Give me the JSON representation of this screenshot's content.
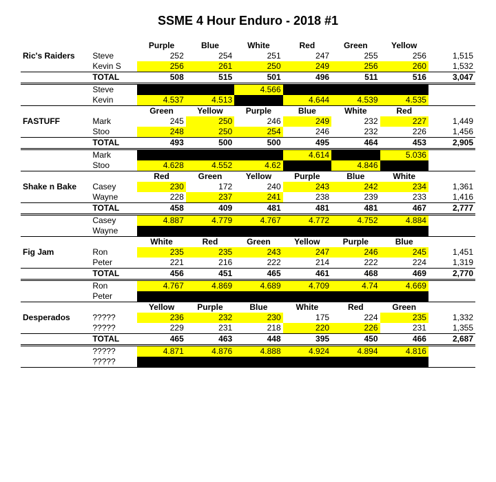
{
  "title": "SSME 4 Hour Enduro - 2018 #1",
  "teams": [
    {
      "name": "Ric's Raiders",
      "colHeaders": [
        "Purple",
        "Blue",
        "White",
        "Red",
        "Green",
        "Yellow"
      ],
      "riders": [
        {
          "name": "Steve",
          "vals": [
            "252",
            "254",
            "251",
            "247",
            "255",
            "256"
          ],
          "hl": [
            0,
            0,
            0,
            0,
            0,
            0
          ],
          "total": "1,515"
        },
        {
          "name": "Kevin S",
          "vals": [
            "256",
            "261",
            "250",
            "249",
            "256",
            "260"
          ],
          "hl": [
            1,
            1,
            1,
            1,
            1,
            1
          ],
          "total": "1,532"
        }
      ],
      "totals": {
        "vals": [
          "508",
          "515",
          "501",
          "496",
          "511",
          "516"
        ],
        "total": "3,047"
      },
      "times": [
        {
          "name": "Steve",
          "vals": [
            "",
            "",
            "4.566",
            "",
            "",
            ""
          ],
          "cls": [
            "blk",
            "blk",
            "hl",
            "blk",
            "blk",
            "blk"
          ]
        },
        {
          "name": "Kevin",
          "vals": [
            "4.537",
            "4.513",
            "",
            "4.644",
            "4.539",
            "4.535"
          ],
          "cls": [
            "hl",
            "hl",
            "blk",
            "hl",
            "hl",
            "hl"
          ]
        }
      ]
    },
    {
      "name": "FASTUFF",
      "colHeaders": [
        "Green",
        "Yellow",
        "Purple",
        "Blue",
        "White",
        "Red"
      ],
      "riders": [
        {
          "name": "Mark",
          "vals": [
            "245",
            "250",
            "246",
            "249",
            "232",
            "227"
          ],
          "hl": [
            0,
            1,
            0,
            1,
            0,
            1
          ],
          "total": "1,449"
        },
        {
          "name": "Stoo",
          "vals": [
            "248",
            "250",
            "254",
            "246",
            "232",
            "226"
          ],
          "hl": [
            1,
            1,
            1,
            0,
            0,
            0
          ],
          "total": "1,456"
        }
      ],
      "totals": {
        "vals": [
          "493",
          "500",
          "500",
          "495",
          "464",
          "453"
        ],
        "total": "2,905"
      },
      "times": [
        {
          "name": "Mark",
          "vals": [
            "",
            "",
            "",
            "4.614",
            "",
            "5.036"
          ],
          "cls": [
            "blk",
            "blk",
            "blk",
            "hl",
            "blk",
            "hl"
          ]
        },
        {
          "name": "Stoo",
          "vals": [
            "4.628",
            "4.552",
            "4.62",
            "",
            "4.846",
            ""
          ],
          "cls": [
            "hl",
            "hl",
            "hl",
            "blk",
            "hl",
            "blk"
          ]
        }
      ]
    },
    {
      "name": "Shake n Bake",
      "colHeaders": [
        "Red",
        "Green",
        "Yellow",
        "Purple",
        "Blue",
        "White"
      ],
      "riders": [
        {
          "name": "Casey",
          "vals": [
            "230",
            "172",
            "240",
            "243",
            "242",
            "234"
          ],
          "hl": [
            1,
            0,
            0,
            1,
            1,
            1
          ],
          "total": "1,361"
        },
        {
          "name": "Wayne",
          "vals": [
            "228",
            "237",
            "241",
            "238",
            "239",
            "233"
          ],
          "hl": [
            0,
            1,
            1,
            0,
            0,
            0
          ],
          "total": "1,416"
        }
      ],
      "totals": {
        "vals": [
          "458",
          "409",
          "481",
          "481",
          "481",
          "467"
        ],
        "total": "2,777"
      },
      "times": [
        {
          "name": "Casey",
          "vals": [
            "4.887",
            "4.779",
            "4.767",
            "4.772",
            "4.752",
            "4.884"
          ],
          "cls": [
            "hl",
            "hl",
            "hl",
            "hl",
            "hl",
            "hl"
          ]
        },
        {
          "name": "Wayne",
          "vals": [
            "",
            "",
            "",
            "",
            "",
            ""
          ],
          "cls": [
            "blk",
            "blk",
            "blk",
            "blk",
            "blk",
            "blk"
          ]
        }
      ]
    },
    {
      "name": "Fig Jam",
      "colHeaders": [
        "White",
        "Red",
        "Green",
        "Yellow",
        "Purple",
        "Blue"
      ],
      "riders": [
        {
          "name": "Ron",
          "vals": [
            "235",
            "235",
            "243",
            "247",
            "246",
            "245"
          ],
          "hl": [
            1,
            1,
            1,
            1,
            1,
            1
          ],
          "total": "1,451"
        },
        {
          "name": "Peter",
          "vals": [
            "221",
            "216",
            "222",
            "214",
            "222",
            "224"
          ],
          "hl": [
            0,
            0,
            0,
            0,
            0,
            0
          ],
          "total": "1,319"
        }
      ],
      "totals": {
        "vals": [
          "456",
          "451",
          "465",
          "461",
          "468",
          "469"
        ],
        "total": "2,770"
      },
      "times": [
        {
          "name": "Ron",
          "vals": [
            "4.767",
            "4.869",
            "4.689",
            "4.709",
            "4.74",
            "4.669"
          ],
          "cls": [
            "hl",
            "hl",
            "hl",
            "hl",
            "hl",
            "hl"
          ]
        },
        {
          "name": "Peter",
          "vals": [
            "",
            "",
            "",
            "",
            "",
            ""
          ],
          "cls": [
            "blk",
            "blk",
            "blk",
            "blk",
            "blk",
            "blk"
          ]
        }
      ]
    },
    {
      "name": "Desperados",
      "colHeaders": [
        "Yellow",
        "Purple",
        "Blue",
        "White",
        "Red",
        "Green"
      ],
      "riders": [
        {
          "name": "?????",
          "vals": [
            "236",
            "232",
            "230",
            "175",
            "224",
            "235"
          ],
          "hl": [
            1,
            1,
            1,
            0,
            0,
            1
          ],
          "total": "1,332"
        },
        {
          "name": "?????",
          "vals": [
            "229",
            "231",
            "218",
            "220",
            "226",
            "231"
          ],
          "hl": [
            0,
            0,
            0,
            1,
            1,
            0
          ],
          "total": "1,355"
        }
      ],
      "totals": {
        "vals": [
          "465",
          "463",
          "448",
          "395",
          "450",
          "466"
        ],
        "total": "2,687"
      },
      "times": [
        {
          "name": "?????",
          "vals": [
            "4.871",
            "4.876",
            "4.888",
            "4.924",
            "4.894",
            "4.816"
          ],
          "cls": [
            "hl",
            "hl",
            "hl",
            "hl",
            "hl",
            "hl"
          ]
        },
        {
          "name": "?????",
          "vals": [
            "",
            "",
            "",
            "",
            "",
            ""
          ],
          "cls": [
            "blk",
            "blk",
            "blk",
            "blk",
            "blk",
            "blk"
          ]
        }
      ]
    }
  ]
}
